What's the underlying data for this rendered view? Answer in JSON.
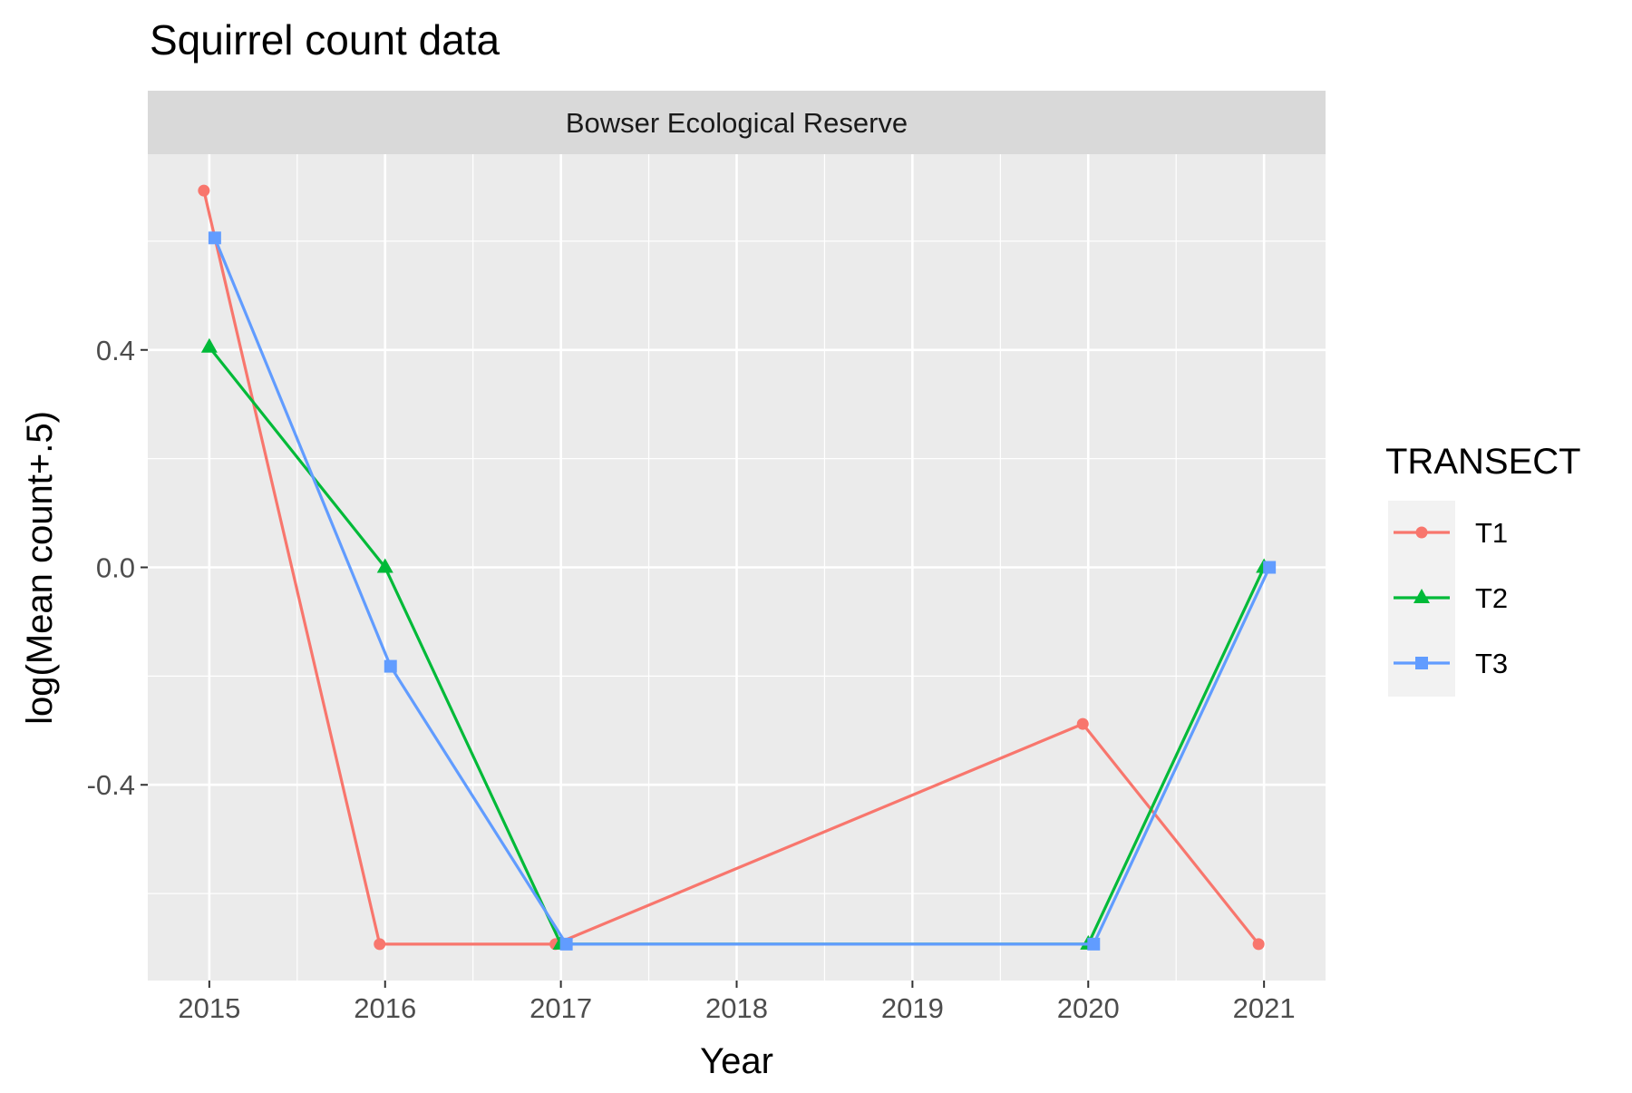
{
  "chart_data": {
    "type": "line",
    "title": "Squirrel count data",
    "facet_label": "Bowser Ecological Reserve",
    "xlabel": "Year",
    "ylabel": "log(Mean count+.5)",
    "x_ticks": [
      2015,
      2016,
      2017,
      2018,
      2019,
      2020,
      2021
    ],
    "y_ticks": [
      0.4,
      0.0,
      -0.4
    ],
    "y_tick_labels": [
      "0.4",
      "0.0",
      "-0.4"
    ],
    "xlim": [
      2014.65,
      2021.35
    ],
    "ylim": [
      -0.76,
      0.76
    ],
    "grid": true,
    "legend": {
      "title": "TRANSECT",
      "position": "right"
    },
    "series": [
      {
        "name": "T1",
        "color": "#F8766D",
        "marker": "circle",
        "x": [
          2015,
          2016,
          2017,
          2020,
          2021
        ],
        "y": [
          0.693,
          -0.693,
          -0.693,
          -0.288,
          -0.693
        ]
      },
      {
        "name": "T2",
        "color": "#00BA38",
        "marker": "triangle",
        "x": [
          2015,
          2016,
          2017,
          2020,
          2021
        ],
        "y": [
          0.405,
          0.0,
          -0.693,
          -0.693,
          0.0
        ]
      },
      {
        "name": "T3",
        "color": "#619CFF",
        "marker": "square",
        "x": [
          2015,
          2016,
          2017,
          2020,
          2021
        ],
        "y": [
          0.606,
          -0.182,
          -0.693,
          -0.693,
          0.0
        ]
      }
    ]
  }
}
